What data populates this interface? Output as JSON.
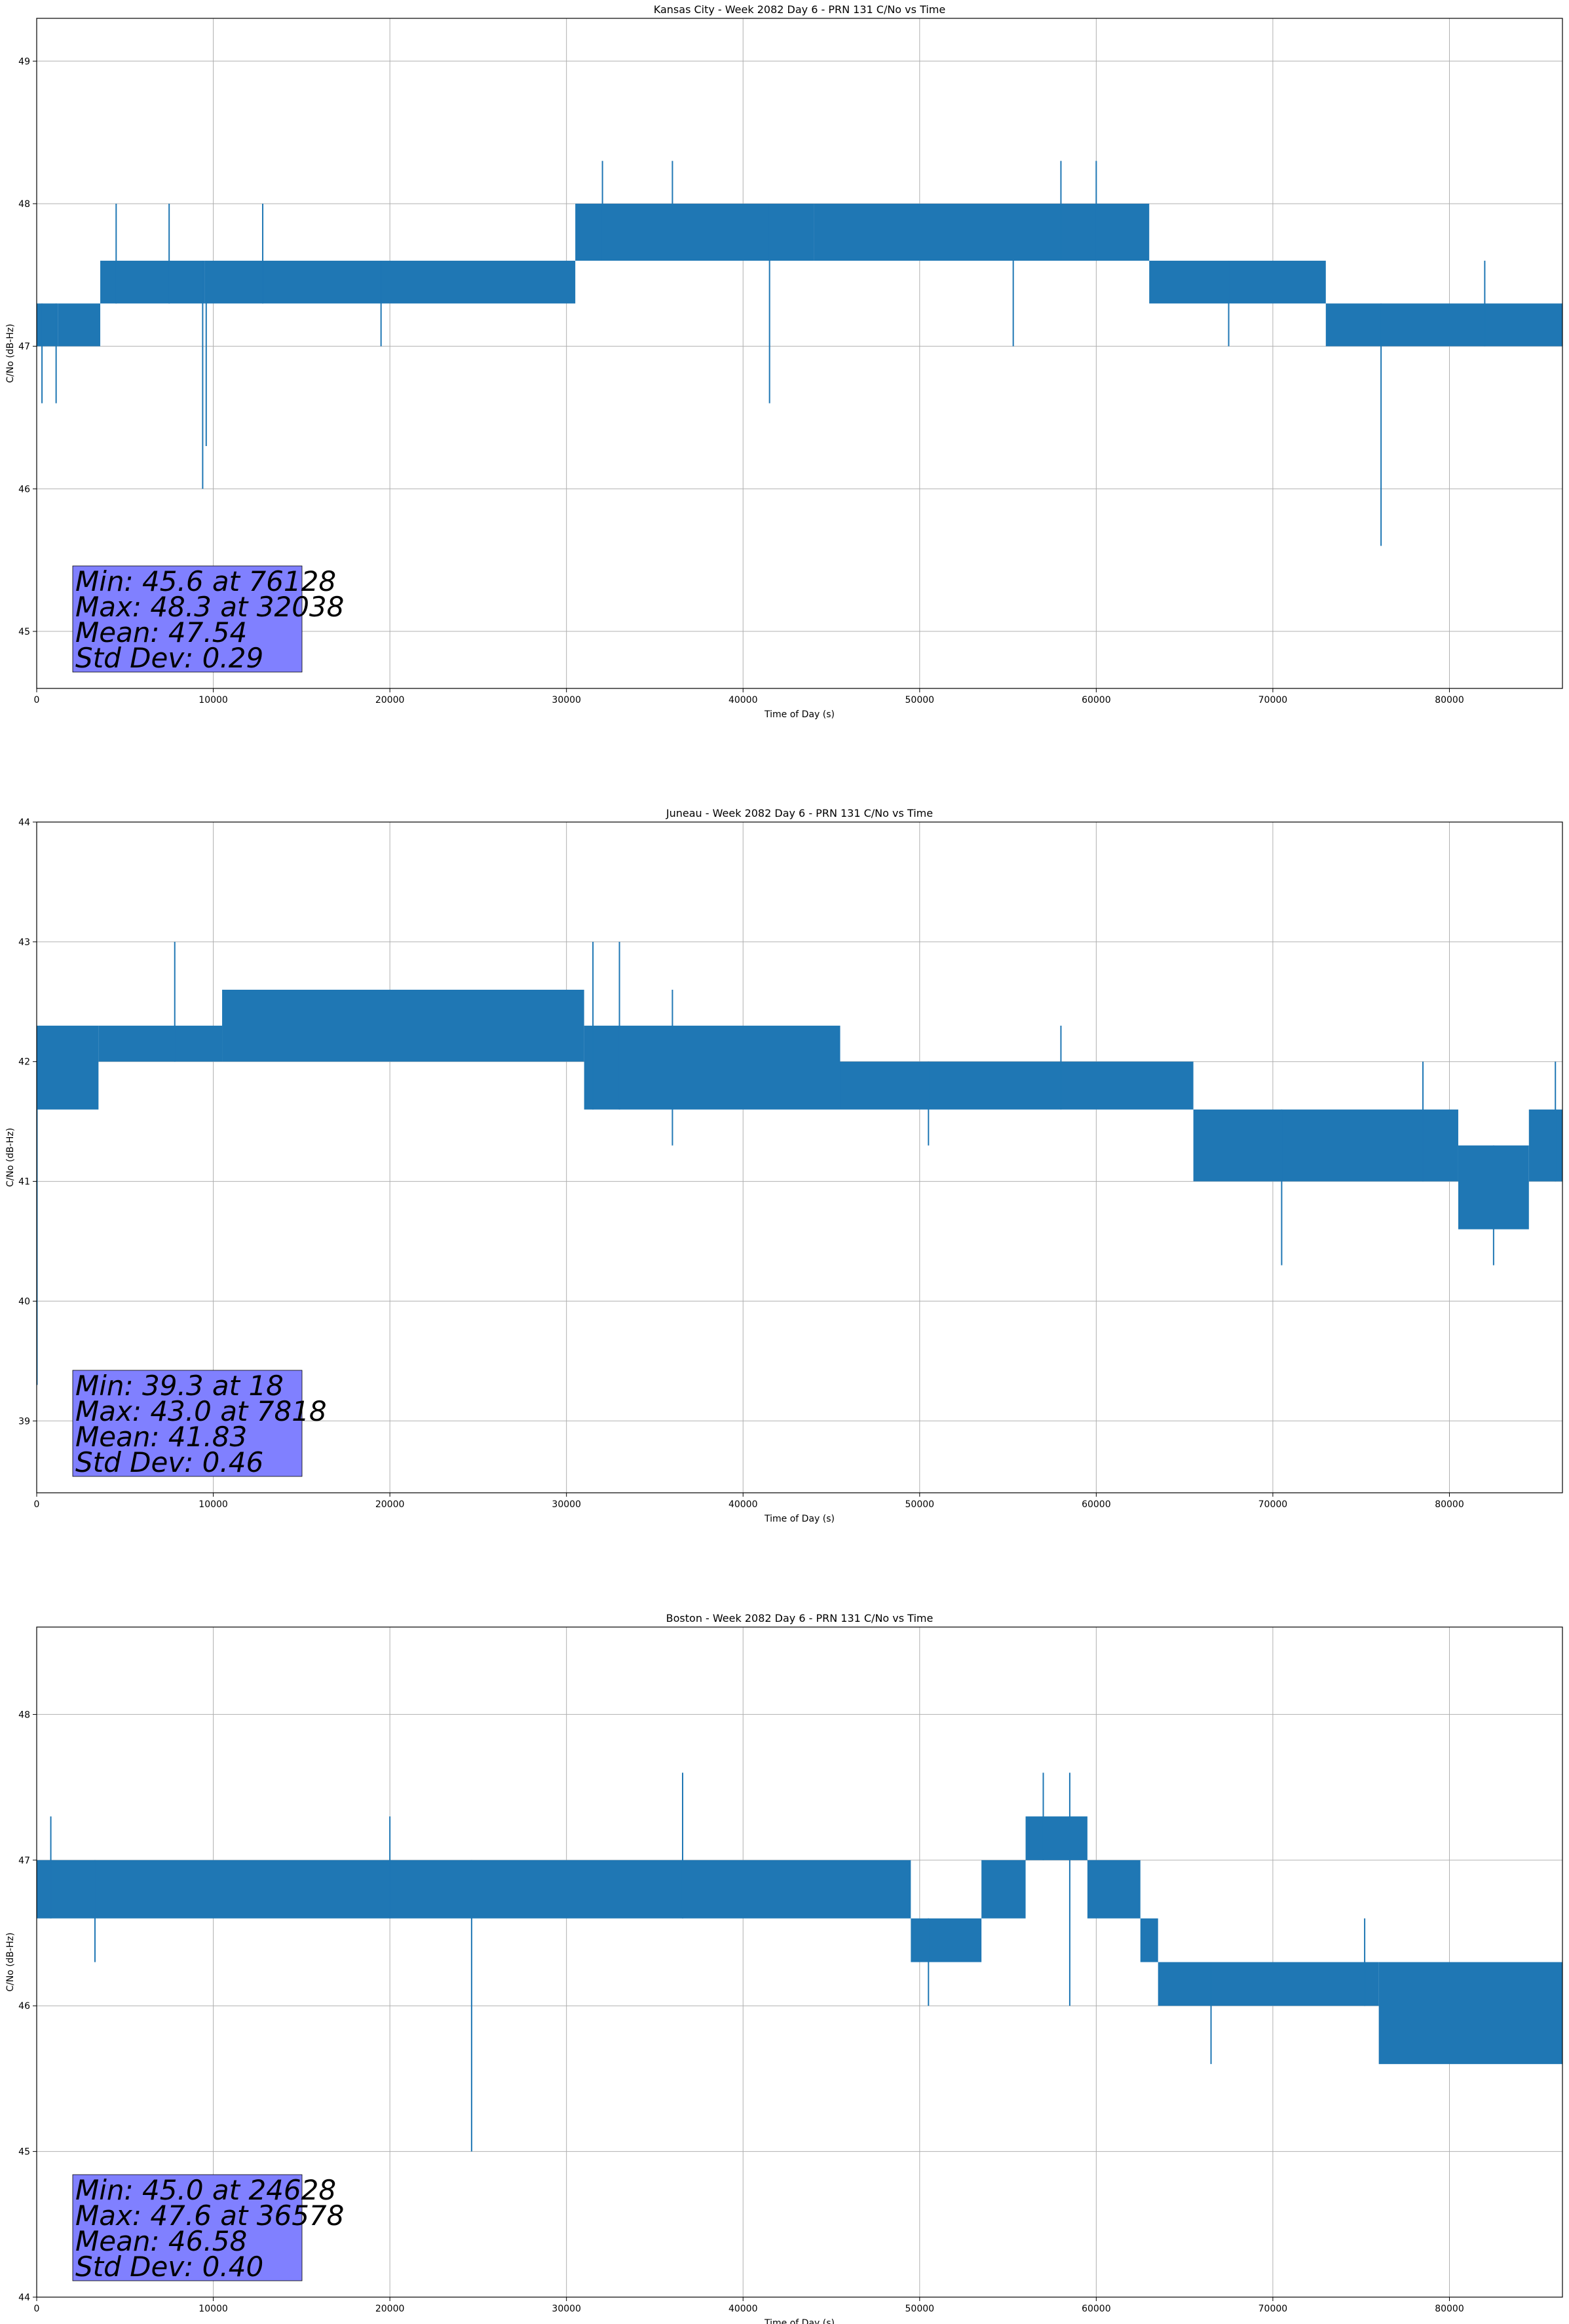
{
  "colors": {
    "series": "#1f77b4",
    "stats_box": "#8080ff",
    "grid": "#b0b0b0",
    "axes": "#000000"
  },
  "chart_data": [
    {
      "type": "line",
      "title": "Kansas City - Week 2082 Day 6 - PRN 131 C/No vs Time",
      "xlabel": "Time of Day (s)",
      "ylabel": "C/No (dB-Hz)",
      "xlim": [
        0,
        86400
      ],
      "ylim": [
        44.6,
        49.3
      ],
      "xticks": [
        0,
        10000,
        20000,
        30000,
        40000,
        50000,
        60000,
        70000,
        80000
      ],
      "yticks": [
        45,
        46,
        47,
        48,
        49
      ],
      "grid": true,
      "stats": [
        "Min: 45.6 at 76128",
        "Max: 48.3 at 32038",
        "Mean: 47.54",
        "Std Dev: 0.29"
      ],
      "segments": [
        {
          "x": [
            0,
            1200
          ],
          "lo": 47.0,
          "hi": 47.3
        },
        {
          "x": [
            1200,
            3600
          ],
          "lo": 47.0,
          "hi": 47.3
        },
        {
          "x": [
            3600,
            9500
          ],
          "lo": 47.3,
          "hi": 47.6
        },
        {
          "x": [
            9500,
            30500
          ],
          "lo": 47.3,
          "hi": 47.6
        },
        {
          "x": [
            30500,
            44000
          ],
          "lo": 47.6,
          "hi": 48.0
        },
        {
          "x": [
            44000,
            63000
          ],
          "lo": 47.6,
          "hi": 48.0
        },
        {
          "x": [
            63000,
            73000
          ],
          "lo": 47.3,
          "hi": 47.6
        },
        {
          "x": [
            73000,
            86400
          ],
          "lo": 47.0,
          "hi": 47.3
        }
      ],
      "spikes": [
        {
          "x": 300,
          "lo": 46.6,
          "hi": 47.3
        },
        {
          "x": 1100,
          "lo": 46.6,
          "hi": 47.3
        },
        {
          "x": 4500,
          "lo": 47.3,
          "hi": 48.0
        },
        {
          "x": 7500,
          "lo": 47.3,
          "hi": 48.0
        },
        {
          "x": 9400,
          "lo": 46.0,
          "hi": 47.6
        },
        {
          "x": 9600,
          "lo": 46.3,
          "hi": 47.6
        },
        {
          "x": 12800,
          "lo": 47.3,
          "hi": 48.0
        },
        {
          "x": 19500,
          "lo": 47.0,
          "hi": 47.6
        },
        {
          "x": 32038,
          "lo": 47.6,
          "hi": 48.3
        },
        {
          "x": 36000,
          "lo": 47.6,
          "hi": 48.3
        },
        {
          "x": 41500,
          "lo": 46.6,
          "hi": 48.0
        },
        {
          "x": 55300,
          "lo": 47.0,
          "hi": 47.6
        },
        {
          "x": 58000,
          "lo": 47.6,
          "hi": 48.3
        },
        {
          "x": 60000,
          "lo": 47.6,
          "hi": 48.3
        },
        {
          "x": 67500,
          "lo": 47.0,
          "hi": 47.6
        },
        {
          "x": 76128,
          "lo": 45.6,
          "hi": 47.3
        },
        {
          "x": 82000,
          "lo": 47.0,
          "hi": 47.6
        }
      ]
    },
    {
      "type": "line",
      "title": "Juneau - Week 2082 Day 6 - PRN 131 C/No vs Time",
      "xlabel": "Time of Day (s)",
      "ylabel": "C/No (dB-Hz)",
      "xlim": [
        0,
        86400
      ],
      "ylim": [
        38.4,
        44.0
      ],
      "xticks": [
        0,
        10000,
        20000,
        30000,
        40000,
        50000,
        60000,
        70000,
        80000
      ],
      "yticks": [
        39,
        40,
        41,
        42,
        43,
        44
      ],
      "grid": true,
      "stats": [
        "Min: 39.3 at 18",
        "Max: 43.0 at 7818",
        "Mean: 41.83",
        "Std Dev: 0.46"
      ],
      "segments": [
        {
          "x": [
            0,
            3500
          ],
          "lo": 41.6,
          "hi": 42.3
        },
        {
          "x": [
            3500,
            10500
          ],
          "lo": 42.0,
          "hi": 42.3
        },
        {
          "x": [
            10500,
            31000
          ],
          "lo": 42.0,
          "hi": 42.6
        },
        {
          "x": [
            31000,
            45500
          ],
          "lo": 41.6,
          "hi": 42.3
        },
        {
          "x": [
            45500,
            65500
          ],
          "lo": 41.6,
          "hi": 42.0
        },
        {
          "x": [
            65500,
            80500
          ],
          "lo": 41.0,
          "hi": 41.6
        },
        {
          "x": [
            80500,
            84500
          ],
          "lo": 40.6,
          "hi": 41.3
        },
        {
          "x": [
            84500,
            86400
          ],
          "lo": 41.0,
          "hi": 41.6
        }
      ],
      "spikes": [
        {
          "x": 18,
          "lo": 39.3,
          "hi": 42.0
        },
        {
          "x": 7818,
          "lo": 42.0,
          "hi": 43.0
        },
        {
          "x": 31500,
          "lo": 41.6,
          "hi": 43.0
        },
        {
          "x": 33000,
          "lo": 41.6,
          "hi": 43.0
        },
        {
          "x": 36000,
          "lo": 41.3,
          "hi": 42.6
        },
        {
          "x": 50500,
          "lo": 41.3,
          "hi": 42.0
        },
        {
          "x": 58000,
          "lo": 41.6,
          "hi": 42.3
        },
        {
          "x": 70500,
          "lo": 40.3,
          "hi": 41.6
        },
        {
          "x": 78500,
          "lo": 41.0,
          "hi": 42.0
        },
        {
          "x": 82500,
          "lo": 40.3,
          "hi": 41.3
        },
        {
          "x": 86000,
          "lo": 41.0,
          "hi": 42.0
        }
      ]
    },
    {
      "type": "line",
      "title": "Boston - Week 2082 Day 6 - PRN 131 C/No vs Time",
      "xlabel": "Time of Day (s)",
      "ylabel": "C/No (dB-Hz)",
      "xlim": [
        0,
        86400
      ],
      "ylim": [
        44.0,
        48.6
      ],
      "xticks": [
        0,
        10000,
        20000,
        30000,
        40000,
        50000,
        60000,
        70000,
        80000
      ],
      "yticks": [
        44,
        45,
        46,
        47,
        48
      ],
      "grid": true,
      "stats": [
        "Min: 45.0 at 24628",
        "Max: 47.6 at 36578",
        "Mean: 46.58",
        "Std Dev: 0.40"
      ],
      "segments": [
        {
          "x": [
            0,
            49500
          ],
          "lo": 46.6,
          "hi": 47.0
        },
        {
          "x": [
            49500,
            53500
          ],
          "lo": 46.3,
          "hi": 46.6
        },
        {
          "x": [
            53500,
            56000
          ],
          "lo": 46.6,
          "hi": 47.0
        },
        {
          "x": [
            56000,
            59500
          ],
          "lo": 47.0,
          "hi": 47.3
        },
        {
          "x": [
            59500,
            62500
          ],
          "lo": 46.6,
          "hi": 47.0
        },
        {
          "x": [
            62500,
            63500
          ],
          "lo": 46.3,
          "hi": 46.6
        },
        {
          "x": [
            63500,
            76000
          ],
          "lo": 46.0,
          "hi": 46.3
        },
        {
          "x": [
            76000,
            86400
          ],
          "lo": 45.6,
          "hi": 46.3
        }
      ],
      "spikes": [
        {
          "x": 800,
          "lo": 46.6,
          "hi": 47.3
        },
        {
          "x": 3300,
          "lo": 46.3,
          "hi": 47.0
        },
        {
          "x": 20000,
          "lo": 46.6,
          "hi": 47.3
        },
        {
          "x": 24628,
          "lo": 45.0,
          "hi": 47.0
        },
        {
          "x": 36578,
          "lo": 46.6,
          "hi": 47.6
        },
        {
          "x": 50500,
          "lo": 46.0,
          "hi": 46.6
        },
        {
          "x": 57000,
          "lo": 47.0,
          "hi": 47.6
        },
        {
          "x": 58500,
          "lo": 46.0,
          "hi": 47.6
        },
        {
          "x": 66500,
          "lo": 45.6,
          "hi": 46.3
        },
        {
          "x": 75200,
          "lo": 46.0,
          "hi": 46.6
        }
      ]
    }
  ]
}
